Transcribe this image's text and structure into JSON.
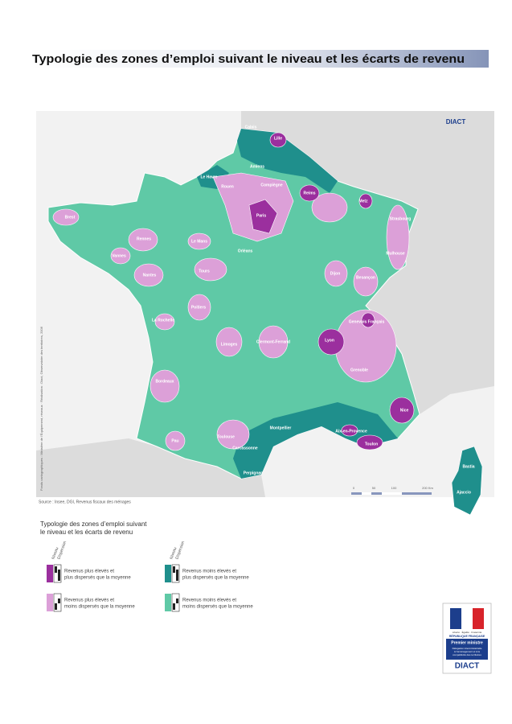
{
  "header": {
    "title": "Typologie des zones d’emploi suivant le niveau et les écarts de revenu"
  },
  "map": {
    "brand": "DIACT",
    "cities": [
      "Calais",
      "Lille",
      "Amiens",
      "Le Havre",
      "Rouen",
      "Compiègne",
      "Reims",
      "Metz",
      "Brest",
      "Paris",
      "Strasbourg",
      "Rennes",
      "Le Mans",
      "Vannes",
      "Orléans",
      "Nantes",
      "Tours",
      "Mulhouse",
      "Dijon",
      "Besançon",
      "Poitiers",
      "La Rochelle",
      "Genevois Français",
      "Lyon",
      "Limoges",
      "Clermont-Ferrand",
      "Grenoble",
      "Bordeaux",
      "Nice",
      "Montpellier",
      "Aix-en-Provence",
      "Pau",
      "Toulouse",
      "Carcassonne",
      "Toulon",
      "Perpignan",
      "Bastia",
      "Ajaccio"
    ],
    "credits": "Fonds cartographiques : Ministère de l'Équipement, réseaux · Réalisation : Diact, Observatoire des territoires, 2006",
    "scale": [
      "0",
      "50",
      "100",
      "200 Km"
    ],
    "source": "Source : Insee, DGI, Revenus fiscaux des ménages"
  },
  "legend": {
    "title": [
      "Typologie des zones d’emploi suivant",
      "le niveau et les écarts de revenu"
    ],
    "columns": [
      "Niveau",
      "Dispersion"
    ],
    "items": [
      [
        "Revenus plus élevés et",
        "plus dispersés que la moyenne"
      ],
      [
        "Revenus moins élevés et",
        "plus dispersés que la moyenne"
      ],
      [
        "Revenus plus élevés et",
        "moins dispersés que la moyenne"
      ],
      [
        "Revenus moins élevés et",
        "moins dispersés que la moyenne"
      ]
    ]
  },
  "logo": {
    "motto": "Liberté · Égalité · Fraternité",
    "republic": "RÉPUBLIQUE FRANÇAISE",
    "minister": "Premier ministre",
    "agency": [
      "Délégation interministérielle",
      "à l'aménagement et à la",
      "compétitivité des territoires"
    ],
    "brand": "DIACT"
  }
}
